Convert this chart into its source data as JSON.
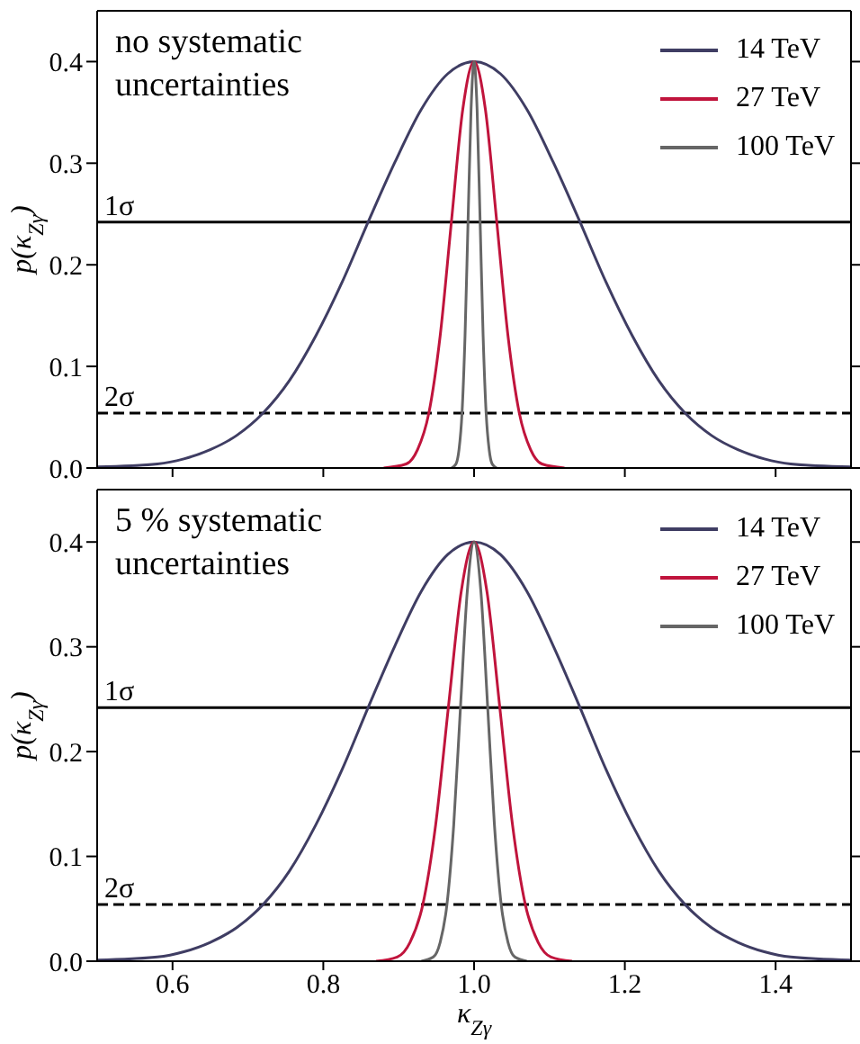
{
  "chart_data": [
    {
      "type": "line",
      "ylabel": "p(κ$_{Zγ}$)",
      "annotations": [
        "no systematic uncertainties"
      ],
      "xlim": [
        0.5,
        1.5
      ],
      "xticks": [
        0.6,
        0.8,
        1,
        1.2,
        1.4
      ],
      "ylim": [
        0,
        0.45
      ],
      "yticks": [
        {
          "value": 0,
          "label": "0.0"
        },
        0.1,
        0.2,
        0.3,
        0.4
      ],
      "tick_labels": "y",
      "legend": "top right",
      "grid": false,
      "marker": "none",
      "line_style": "solid",
      "ref_lines": [
        {
          "axis": "y",
          "value": 0.242,
          "label": "1σ",
          "line_style": "solid",
          "color": "#000000"
        },
        {
          "axis": "y",
          "value": 0.054,
          "label": "2σ",
          "line_style": "dashed",
          "color": "#000000"
        }
      ],
      "series": [
        {
          "name": "14 TeV",
          "color": "#3f3d63",
          "x": [
            0.5,
            0.58,
            0.615,
            0.65,
            0.685,
            0.72,
            0.755,
            0.79,
            0.825,
            0.86,
            0.895,
            0.93,
            0.965,
            1.0,
            1.035,
            1.07,
            1.105,
            1.14,
            1.175,
            1.21,
            1.245,
            1.28,
            1.315,
            1.35,
            1.385,
            1.42,
            1.5
          ],
          "values": [
            0.001,
            0.004,
            0.009,
            0.018,
            0.032,
            0.054,
            0.086,
            0.13,
            0.183,
            0.243,
            0.301,
            0.353,
            0.388,
            0.4,
            0.388,
            0.353,
            0.301,
            0.243,
            0.183,
            0.13,
            0.086,
            0.054,
            0.032,
            0.018,
            0.009,
            0.004,
            0.001
          ]
        },
        {
          "name": "27 TeV",
          "color": "#c0143c",
          "x": [
            0.88,
            0.91,
            0.925,
            0.94,
            0.955,
            0.97,
            0.985,
            1.0,
            1.015,
            1.03,
            1.045,
            1.06,
            1.075,
            1.09,
            1.12
          ],
          "values": [
            0,
            0.004,
            0.018,
            0.054,
            0.13,
            0.243,
            0.353,
            0.4,
            0.353,
            0.243,
            0.13,
            0.054,
            0.018,
            0.004,
            0
          ]
        },
        {
          "name": "100 TeV",
          "color": "#666666",
          "x": [
            0.97,
            0.976,
            0.98,
            0.984,
            0.988,
            0.992,
            0.996,
            1.0,
            1.004,
            1.008,
            1.012,
            1.016,
            1.02,
            1.024,
            1.03
          ],
          "values": [
            0,
            0.004,
            0.018,
            0.054,
            0.13,
            0.243,
            0.353,
            0.4,
            0.353,
            0.243,
            0.13,
            0.054,
            0.018,
            0.004,
            0
          ]
        }
      ]
    },
    {
      "type": "line",
      "xlabel": "κ$_{Zγ}$",
      "ylabel": "p(κ$_{Zγ}$)",
      "annotations": [
        "5 % systematic uncertainties"
      ],
      "xlim": [
        0.5,
        1.5
      ],
      "xticks": [
        0.6,
        0.8,
        {
          "value": 1,
          "label": "1.0"
        },
        1.2,
        1.4
      ],
      "ylim": [
        0,
        0.45
      ],
      "yticks": [
        {
          "value": 0,
          "label": "0.0"
        },
        0.1,
        0.2,
        0.3,
        0.4
      ],
      "legend": "top right",
      "grid": false,
      "marker": "none",
      "line_style": "solid",
      "ref_lines": [
        {
          "axis": "y",
          "value": 0.242,
          "label": "1σ",
          "line_style": "solid",
          "color": "#000000"
        },
        {
          "axis": "y",
          "value": 0.054,
          "label": "2σ",
          "line_style": "dashed",
          "color": "#000000"
        }
      ],
      "series": [
        {
          "name": "14 TeV",
          "color": "#3f3d63",
          "x": [
            0.5,
            0.58,
            0.615,
            0.65,
            0.685,
            0.72,
            0.755,
            0.79,
            0.825,
            0.86,
            0.895,
            0.93,
            0.965,
            1.0,
            1.035,
            1.07,
            1.105,
            1.14,
            1.175,
            1.21,
            1.245,
            1.28,
            1.315,
            1.35,
            1.385,
            1.42,
            1.5
          ],
          "values": [
            0.001,
            0.004,
            0.009,
            0.018,
            0.032,
            0.054,
            0.086,
            0.13,
            0.183,
            0.243,
            0.301,
            0.353,
            0.388,
            0.4,
            0.388,
            0.353,
            0.301,
            0.243,
            0.183,
            0.13,
            0.086,
            0.054,
            0.032,
            0.018,
            0.009,
            0.004,
            0.001
          ]
        },
        {
          "name": "27 TeV",
          "color": "#c0143c",
          "x": [
            0.87,
            0.898,
            0.915,
            0.932,
            0.949,
            0.966,
            0.983,
            1.0,
            1.017,
            1.034,
            1.051,
            1.068,
            1.085,
            1.102,
            1.13
          ],
          "values": [
            0,
            0.004,
            0.018,
            0.054,
            0.13,
            0.243,
            0.353,
            0.4,
            0.353,
            0.243,
            0.13,
            0.054,
            0.018,
            0.004,
            0
          ]
        },
        {
          "name": "100 TeV",
          "color": "#666666",
          "x": [
            0.93,
            0.946,
            0.955,
            0.964,
            0.973,
            0.982,
            0.991,
            1.0,
            1.009,
            1.018,
            1.027,
            1.036,
            1.045,
            1.054,
            1.07
          ],
          "values": [
            0,
            0.004,
            0.018,
            0.054,
            0.13,
            0.243,
            0.353,
            0.4,
            0.353,
            0.243,
            0.13,
            0.054,
            0.018,
            0.004,
            0
          ]
        }
      ]
    }
  ]
}
